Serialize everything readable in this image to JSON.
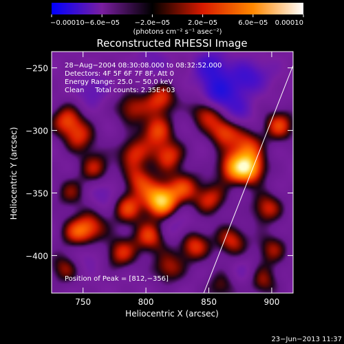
{
  "chart_data": {
    "type": "heatmap",
    "title": "Reconstructed RHESSI Image",
    "xlabel": "Heliocentric X (arcsec)",
    "ylabel": "Heliocentric Y (arcsec)",
    "xlim": [
      725,
      917
    ],
    "ylim": [
      -430,
      -237
    ],
    "x_ticks": [
      750,
      800,
      850,
      900
    ],
    "x_tick_labels": [
      "750",
      "800",
      "850",
      "900"
    ],
    "y_ticks": [
      -250,
      -300,
      -350,
      -400
    ],
    "y_tick_labels": [
      "−250",
      "−300",
      "−350",
      "−400"
    ],
    "colorbar": {
      "range": [
        -0.0001,
        0.0001
      ],
      "tick_values": [
        -0.0001,
        -6e-05,
        -2e-05,
        2e-05,
        6e-05,
        0.0001
      ],
      "tick_labels": [
        "−0.00010",
        "−6.0e−05",
        "−2.0e−05",
        "2.0e−05",
        "6.0e−05",
        "0.00010"
      ],
      "units_label": "(photons cm⁻² s⁻¹ asec⁻²)",
      "colors": [
        "#0000ff",
        "#7a1ea0",
        "#000000",
        "#d81a00",
        "#ff8800",
        "#ffffff"
      ]
    },
    "annotations": [
      "28−Aug−2004 08:30:08.000 to 08:32:52.000",
      "Detectors: 4F 5F 6F 7F 8F, Att 0",
      "Energy Range: 25.0 − 50.0 keV",
      "Clean     Total counts: 2.35E+03"
    ],
    "peak_label": "Position of Peak = [812,−356]",
    "peak_position": [
      812,
      -356
    ],
    "limb_line": {
      "x": [
        846,
        917
      ],
      "y": [
        -430,
        -248
      ]
    },
    "blobs": [
      {
        "x": 737,
        "y": -292,
        "v": 0.55
      },
      {
        "x": 748,
        "y": -306,
        "v": 0.45
      },
      {
        "x": 760,
        "y": -330,
        "v": 0.45
      },
      {
        "x": 740,
        "y": -350,
        "v": 0.35
      },
      {
        "x": 745,
        "y": -382,
        "v": 0.5
      },
      {
        "x": 757,
        "y": -377,
        "v": 0.45
      },
      {
        "x": 735,
        "y": -410,
        "v": 0.4
      },
      {
        "x": 788,
        "y": -282,
        "v": 0.45
      },
      {
        "x": 812,
        "y": -275,
        "v": 0.55
      },
      {
        "x": 808,
        "y": -300,
        "v": 0.55
      },
      {
        "x": 790,
        "y": -318,
        "v": 0.5
      },
      {
        "x": 795,
        "y": -340,
        "v": 0.5
      },
      {
        "x": 812,
        "y": -356,
        "v": 1.0
      },
      {
        "x": 785,
        "y": -362,
        "v": 0.55
      },
      {
        "x": 830,
        "y": -345,
        "v": 0.5
      },
      {
        "x": 818,
        "y": -320,
        "v": 0.55
      },
      {
        "x": 803,
        "y": -385,
        "v": 0.55
      },
      {
        "x": 780,
        "y": -398,
        "v": 0.5
      },
      {
        "x": 818,
        "y": -410,
        "v": 0.45
      },
      {
        "x": 848,
        "y": -285,
        "v": 0.5
      },
      {
        "x": 862,
        "y": -300,
        "v": 0.6
      },
      {
        "x": 880,
        "y": -312,
        "v": 0.5
      },
      {
        "x": 868,
        "y": -330,
        "v": 0.55
      },
      {
        "x": 882,
        "y": -330,
        "v": 0.85
      },
      {
        "x": 851,
        "y": -355,
        "v": 0.5
      },
      {
        "x": 838,
        "y": -392,
        "v": 0.55
      },
      {
        "x": 868,
        "y": -388,
        "v": 0.5
      },
      {
        "x": 896,
        "y": -362,
        "v": 0.5
      },
      {
        "x": 906,
        "y": -296,
        "v": 0.55
      },
      {
        "x": 900,
        "y": -395,
        "v": 0.4
      },
      {
        "x": 892,
        "y": -420,
        "v": 0.45
      },
      {
        "x": 860,
        "y": -425,
        "v": 0.35
      },
      {
        "x": 852,
        "y": -250,
        "v": -0.55
      },
      {
        "x": 858,
        "y": -270,
        "v": -0.7
      },
      {
        "x": 878,
        "y": -258,
        "v": -0.45
      },
      {
        "x": 805,
        "y": -245,
        "v": -0.2
      },
      {
        "x": 757,
        "y": -268,
        "v": -0.25
      },
      {
        "x": 892,
        "y": -255,
        "v": -0.15
      },
      {
        "x": 872,
        "y": -285,
        "v": -0.35
      },
      {
        "x": 768,
        "y": -350,
        "v": -0.25
      },
      {
        "x": 752,
        "y": -399,
        "v": -0.2
      },
      {
        "x": 825,
        "y": -378,
        "v": -0.2
      },
      {
        "x": 880,
        "y": -415,
        "v": -0.2
      }
    ]
  },
  "footer": {
    "timestamp": "23−Jun−2013 11:37"
  }
}
